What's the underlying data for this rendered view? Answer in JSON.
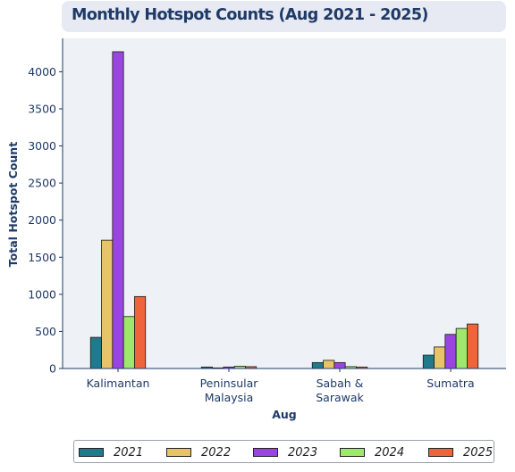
{
  "chart_data": {
    "type": "bar",
    "title": "Monthly Hotspot Counts (Aug 2021 - 2025)",
    "xlabel": "Aug",
    "ylabel": "Total Hotspot Count",
    "categories": [
      "Kalimantan",
      "Peninsular Malaysia",
      "Sabah & Sarawak",
      "Sumatra"
    ],
    "ylim": [
      0,
      4450
    ],
    "yticks": [
      0,
      500,
      1000,
      1500,
      2000,
      2500,
      3000,
      3500,
      4000
    ],
    "grid": false,
    "legend_position": "bottom",
    "series": [
      {
        "name": "2021",
        "color": "#1f7a8c",
        "values": [
          420,
          20,
          80,
          180
        ]
      },
      {
        "name": "2022",
        "color": "#e8c468",
        "values": [
          1730,
          8,
          110,
          290
        ]
      },
      {
        "name": "2023",
        "color": "#9b45e0",
        "values": [
          4270,
          20,
          80,
          460
        ]
      },
      {
        "name": "2024",
        "color": "#9ee86b",
        "values": [
          700,
          30,
          25,
          540
        ]
      },
      {
        "name": "2025",
        "color": "#f0643c",
        "values": [
          970,
          25,
          20,
          600
        ]
      }
    ]
  }
}
